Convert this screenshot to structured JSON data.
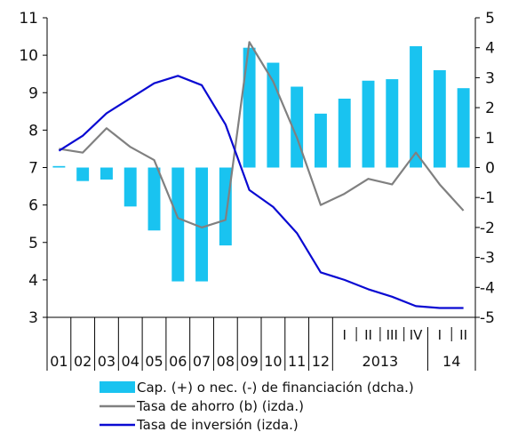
{
  "chart_data": {
    "type": "bar+line",
    "left_axis": {
      "min": 3,
      "max": 11,
      "ticks": [
        "3",
        "4",
        "5",
        "6",
        "7",
        "8",
        "9",
        "10",
        "11"
      ]
    },
    "right_axis": {
      "min": -5,
      "max": 5,
      "ticks": [
        "-5",
        "-4",
        "-3",
        "-2",
        "-1",
        "0",
        "1",
        "2",
        "3",
        "4",
        "5"
      ]
    },
    "categories": [
      "01",
      "02",
      "03",
      "04",
      "05",
      "06",
      "07",
      "08",
      "09",
      "10",
      "11",
      "12",
      "I",
      "II",
      "III",
      "IV",
      "I",
      "II"
    ],
    "year_groups": [
      {
        "label": "2013",
        "from": 12,
        "to": 15
      },
      {
        "label": "14",
        "from": 16,
        "to": 17
      }
    ],
    "series": [
      {
        "name": "Cap. (+) o nec. (-) de financiación (dcha.)",
        "kind": "bar",
        "axis": "right",
        "color": "#19c3f0",
        "values": [
          0.05,
          -0.45,
          -0.4,
          -1.3,
          -2.1,
          -3.8,
          -3.8,
          -2.6,
          4.0,
          3.5,
          2.7,
          1.8,
          2.3,
          2.9,
          2.95,
          4.05,
          3.25,
          2.65
        ]
      },
      {
        "name": "Tasa de ahorro (b) (izda.)",
        "kind": "line",
        "axis": "left",
        "color": "#808080",
        "values": [
          7.5,
          7.4,
          8.05,
          7.55,
          7.2,
          5.65,
          5.4,
          5.6,
          10.35,
          9.3,
          7.8,
          6.0,
          6.3,
          6.7,
          6.55,
          7.4,
          6.55,
          5.85
        ]
      },
      {
        "name": "Tasa de inversión (izda.)",
        "kind": "line",
        "axis": "left",
        "color": "#0a0ad2",
        "values": [
          7.45,
          7.85,
          8.45,
          8.85,
          9.25,
          9.45,
          9.2,
          8.15,
          6.4,
          5.95,
          5.25,
          4.2,
          4.0,
          3.75,
          3.55,
          3.3,
          3.25,
          3.25
        ]
      }
    ]
  }
}
